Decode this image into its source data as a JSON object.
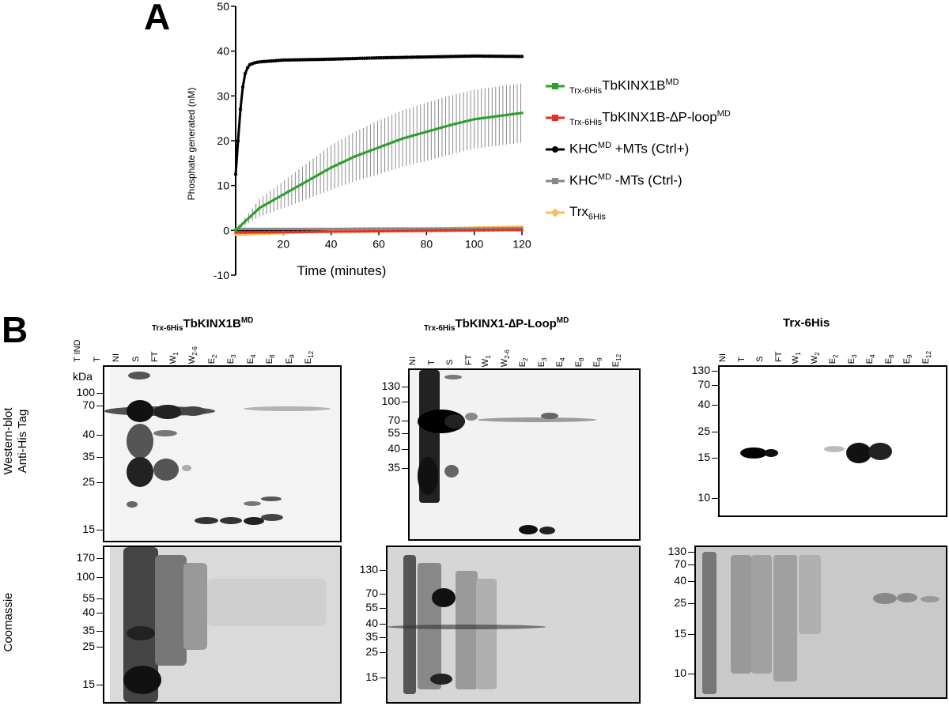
{
  "panel_a_letter": "A",
  "panel_b_letter": "B",
  "chart_data": {
    "type": "line",
    "title": "",
    "xlabel": "Time (minutes)",
    "ylabel": "Phosphate generated (nM)",
    "xlim": [
      0,
      120
    ],
    "ylim": [
      -10,
      50
    ],
    "xticks": [
      20,
      40,
      60,
      80,
      100,
      120
    ],
    "yticks": [
      -10,
      0,
      10,
      20,
      30,
      40,
      50
    ],
    "grid": false,
    "legend_position": "right",
    "series": [
      {
        "name": "Trx-6His TbKINX1B MD",
        "color": "#2ca02c",
        "marker": "square",
        "x": [
          0,
          10,
          20,
          30,
          40,
          50,
          60,
          70,
          80,
          90,
          100,
          110,
          120
        ],
        "y": [
          0,
          5,
          8,
          11,
          14,
          16.5,
          18.5,
          20.5,
          22,
          23.5,
          24.8,
          25.5,
          26.2
        ],
        "err": [
          0,
          2,
          3,
          4,
          5,
          5.5,
          6,
          6.3,
          6.5,
          6.6,
          6.6,
          6.6,
          6.6
        ]
      },
      {
        "name": "Trx-6His TbKINX1B-ΔP-loop MD",
        "color": "#e53020",
        "marker": "triangle",
        "x": [
          0,
          20,
          40,
          60,
          80,
          100,
          120
        ],
        "y": [
          -0.5,
          -0.4,
          -0.3,
          -0.2,
          -0.1,
          0,
          0.1
        ]
      },
      {
        "name": "KHC MD +MTs (Ctrl+)",
        "color": "#000000",
        "marker": "circle",
        "x": [
          0,
          1,
          2,
          3,
          4,
          5,
          6,
          8,
          10,
          20,
          40,
          60,
          80,
          100,
          120
        ],
        "y": [
          12.5,
          20,
          27,
          32,
          35,
          36.3,
          37,
          37.4,
          37.6,
          38,
          38.2,
          38.5,
          38.7,
          38.9,
          38.8
        ]
      },
      {
        "name": "KHC MD -MTs (Ctrl-)",
        "color": "#888888",
        "marker": "triangle-down",
        "x": [
          0,
          20,
          40,
          60,
          80,
          100,
          120
        ],
        "y": [
          0.3,
          0.3,
          0.3,
          0.4,
          0.4,
          0.4,
          0.5
        ]
      },
      {
        "name": "Trx 6His",
        "color": "#f5c060",
        "marker": "diamond",
        "x": [
          0,
          20,
          40,
          60,
          80,
          100,
          120
        ],
        "y": [
          -1,
          -0.6,
          -0.2,
          0.1,
          0.4,
          0.6,
          0.8
        ]
      }
    ]
  },
  "legend": [
    {
      "pre_sub": "Trx-6His",
      "main": "TbKINX1B",
      "sup": "MD",
      "post": "",
      "color": "#2ca02c",
      "marker": "square"
    },
    {
      "pre_sub": "Trx-6His",
      "main": "TbKINX1B-∆P-loop",
      "sup": "MD",
      "post": "",
      "color": "#e53020",
      "marker": "triangle"
    },
    {
      "pre_sub": "",
      "main": "KHC",
      "sup": "MD",
      "post": " +MTs (Ctrl+)",
      "color": "#000000",
      "marker": "circle"
    },
    {
      "pre_sub": "",
      "main": "KHC",
      "sup": "MD",
      "post": " -MTs (Ctrl-)",
      "color": "#888888",
      "marker": "triangle-down"
    },
    {
      "pre_sub": "",
      "main": "Trx",
      "sub": "6His",
      "sup": "",
      "post": "",
      "color": "#f5c060",
      "marker": "diamond"
    }
  ],
  "blot1": {
    "title_sub": "Trx-6His",
    "title_main": "TbKINX1B",
    "title_sup": "MD",
    "lanes": [
      {
        "t": "T IND"
      },
      {
        "t": "T"
      },
      {
        "t": "NI"
      },
      {
        "t": "S"
      },
      {
        "t": "FT"
      },
      {
        "t": "W",
        "s": "1"
      },
      {
        "t": "W",
        "s": "2-6"
      },
      {
        "t": "E",
        "s": "2"
      },
      {
        "t": "E",
        "s": "3"
      },
      {
        "t": "E",
        "s": "4"
      },
      {
        "t": "E",
        "s": "8"
      },
      {
        "t": "E",
        "s": "9"
      },
      {
        "t": "E",
        "s": "12"
      }
    ],
    "kda_unit": "kDa",
    "wb_markers": [
      "100",
      "70",
      "40",
      "35",
      "25",
      "15"
    ],
    "cb_markers": [
      "170",
      "100",
      "55",
      "40",
      "35",
      "25",
      "15"
    ]
  },
  "blot2": {
    "title_sub": "Trx-6His",
    "title_main": "TbKINX1-∆P-Loop",
    "title_sup": "MD",
    "lanes": [
      {
        "t": "NI"
      },
      {
        "t": "T"
      },
      {
        "t": "S"
      },
      {
        "t": "FT"
      },
      {
        "t": "W",
        "s": "1"
      },
      {
        "t": "W",
        "s": "2-6"
      },
      {
        "t": "E",
        "s": "2"
      },
      {
        "t": "E",
        "s": "3"
      },
      {
        "t": "E",
        "s": "4"
      },
      {
        "t": "E",
        "s": "8"
      },
      {
        "t": "E",
        "s": "9"
      },
      {
        "t": "E",
        "s": "12"
      }
    ],
    "wb_markers": [
      "130",
      "100",
      "70",
      "55",
      "40",
      "35"
    ],
    "cb_markers": [
      "130",
      "70",
      "55",
      "40",
      "35",
      "25",
      "15"
    ]
  },
  "blot3": {
    "title": "Trx-6His",
    "lanes": [
      {
        "t": "NI"
      },
      {
        "t": "T"
      },
      {
        "t": "S"
      },
      {
        "t": "FT"
      },
      {
        "t": "W",
        "s": "1"
      },
      {
        "t": "W",
        "s": "2"
      },
      {
        "t": "E",
        "s": "2"
      },
      {
        "t": "E",
        "s": "3"
      },
      {
        "t": "E",
        "s": "4"
      },
      {
        "t": "E",
        "s": "8"
      },
      {
        "t": "E",
        "s": "9"
      },
      {
        "t": "E",
        "s": "12"
      }
    ],
    "wb_markers": [
      "130",
      "70",
      "40",
      "25",
      "15",
      "10"
    ],
    "cb_markers": [
      "130",
      "70",
      "40",
      "25",
      "15",
      "10"
    ]
  },
  "row_labels": {
    "wb_line1": "Western-blot",
    "wb_line2": "Anti-His Tag",
    "cb": "Coomassie"
  }
}
